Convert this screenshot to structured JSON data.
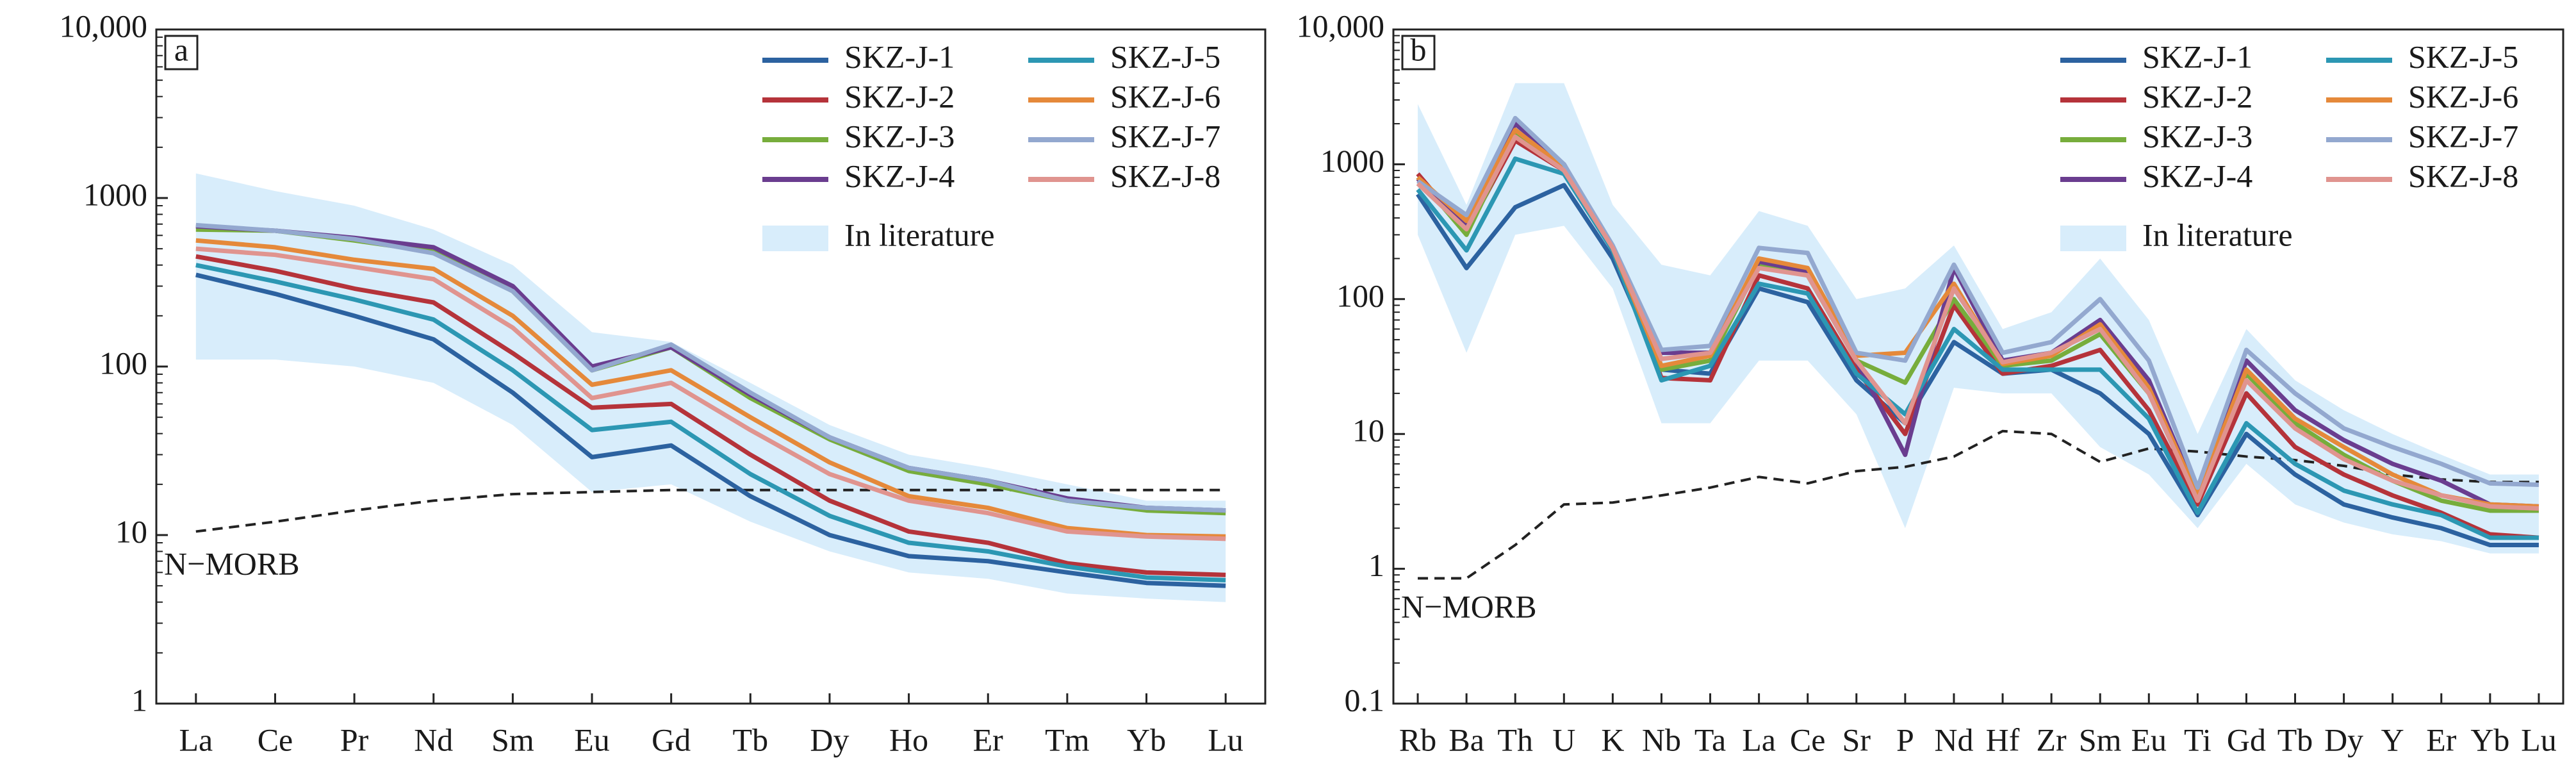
{
  "chart_data": [
    {
      "type": "line",
      "label": "a",
      "yscale": "log",
      "legend": "upper right",
      "categories": [
        "La",
        "Ce",
        "Pr",
        "Nd",
        "Sm",
        "Eu",
        "Gd",
        "Tb",
        "Dy",
        "Ho",
        "Er",
        "Tm",
        "Yb",
        "Lu"
      ],
      "ylim": [
        1,
        10000
      ],
      "yticks": [
        1,
        10,
        100,
        1000,
        {
          "value": 10000,
          "label": "10,000"
        }
      ],
      "series": [
        {
          "name": "SKZ-J-1",
          "color": "#2c62a0",
          "values": [
            350,
            270,
            200,
            145,
            70,
            29,
            34,
            17,
            10,
            7.5,
            7,
            6,
            5.2,
            5
          ]
        },
        {
          "name": "SKZ-J-2",
          "color": "#b5333a",
          "values": [
            450,
            370,
            290,
            240,
            120,
            57,
            60,
            30,
            16,
            10.5,
            9,
            6.8,
            6,
            5.8
          ]
        },
        {
          "name": "SKZ-J-3",
          "color": "#77ad3c",
          "values": [
            650,
            640,
            560,
            480,
            280,
            95,
            130,
            65,
            37,
            24,
            20,
            16,
            14,
            13.5
          ]
        },
        {
          "name": "SKZ-J-4",
          "color": "#6a3d8f",
          "values": [
            680,
            640,
            580,
            510,
            300,
            100,
            130,
            68,
            38,
            25,
            21,
            16.5,
            14.5,
            14
          ]
        },
        {
          "name": "SKZ-J-5",
          "color": "#2c97b3",
          "values": [
            400,
            320,
            250,
            190,
            95,
            42,
            47,
            23,
            13,
            9,
            8,
            6.5,
            5.6,
            5.4
          ]
        },
        {
          "name": "SKZ-J-6",
          "color": "#e5893a",
          "values": [
            560,
            510,
            430,
            380,
            200,
            78,
            95,
            50,
            27,
            17,
            14.5,
            11,
            10,
            9.8
          ]
        },
        {
          "name": "SKZ-J-7",
          "color": "#93a8cf",
          "values": [
            690,
            640,
            570,
            470,
            280,
            95,
            135,
            70,
            38,
            25,
            21,
            16,
            14.5,
            14
          ]
        },
        {
          "name": "SKZ-J-8",
          "color": "#e0948f",
          "values": [
            500,
            460,
            390,
            330,
            170,
            65,
            80,
            42,
            23,
            16,
            13.5,
            10.5,
            9.8,
            9.5
          ]
        }
      ],
      "band": {
        "name": "In literature",
        "color": "#d8edfb",
        "upper": [
          1400,
          1100,
          900,
          650,
          400,
          160,
          140,
          80,
          45,
          30,
          25,
          20,
          16,
          16
        ],
        "lower": [
          110,
          110,
          100,
          80,
          45,
          18,
          20,
          12,
          8,
          6,
          5.5,
          4.5,
          4.2,
          4
        ]
      },
      "reference": {
        "label": "N−MORB",
        "values": [
          10.5,
          12,
          14,
          16,
          17.5,
          18,
          18.5,
          18.5,
          18.5,
          18.5,
          18.5,
          18.5,
          18.5,
          18.5
        ]
      }
    },
    {
      "type": "line",
      "label": "b",
      "yscale": "log",
      "legend": "upper right",
      "categories": [
        "Rb",
        "Ba",
        "Th",
        "U",
        "K",
        "Nb",
        "Ta",
        "La",
        "Ce",
        "Sr",
        "P",
        "Nd",
        "Hf",
        "Zr",
        "Sm",
        "Eu",
        "Ti",
        "Gd",
        "Tb",
        "Dy",
        "Y",
        "Er",
        "Yb",
        "Lu"
      ],
      "ylim": [
        0.1,
        10000
      ],
      "yticks": [
        0.1,
        1,
        10,
        100,
        1000,
        {
          "value": 10000,
          "label": "10,000"
        }
      ],
      "series": [
        {
          "name": "SKZ-J-1",
          "color": "#2c62a0",
          "values": [
            600,
            170,
            480,
            700,
            200,
            30,
            28,
            120,
            95,
            25,
            12,
            48,
            28,
            30,
            20,
            10,
            2.5,
            10,
            5,
            3,
            2.4,
            2,
            1.5,
            1.5
          ]
        },
        {
          "name": "SKZ-J-2",
          "color": "#b5333a",
          "values": [
            850,
            320,
            1500,
            900,
            230,
            26,
            25,
            150,
            120,
            30,
            10,
            90,
            28,
            32,
            42,
            15,
            3,
            20,
            8,
            5,
            3.5,
            2.6,
            1.8,
            1.7
          ]
        },
        {
          "name": "SKZ-J-3",
          "color": "#77ad3c",
          "values": [
            800,
            300,
            1700,
            950,
            240,
            30,
            35,
            180,
            150,
            35,
            24,
            100,
            32,
            35,
            55,
            20,
            3.3,
            28,
            12,
            7,
            4.5,
            3.2,
            2.7,
            2.7
          ]
        },
        {
          "name": "SKZ-J-4",
          "color": "#6a3d8f",
          "values": [
            780,
            350,
            2000,
            1000,
            240,
            40,
            40,
            190,
            160,
            35,
            7,
            170,
            35,
            40,
            70,
            25,
            3.5,
            35,
            15,
            9,
            6,
            4.5,
            3,
            2.9
          ]
        },
        {
          "name": "SKZ-J-5",
          "color": "#2c97b3",
          "values": [
            650,
            230,
            1100,
            850,
            230,
            25,
            32,
            130,
            110,
            28,
            14,
            60,
            30,
            30,
            30,
            13,
            2.6,
            12,
            6,
            3.8,
            3,
            2.5,
            1.7,
            1.7
          ]
        },
        {
          "name": "SKZ-J-6",
          "color": "#e5893a",
          "values": [
            800,
            380,
            1800,
            950,
            240,
            32,
            38,
            200,
            170,
            38,
            40,
            130,
            33,
            38,
            65,
            22,
            3.5,
            30,
            13,
            8,
            5,
            3.5,
            3,
            2.9
          ]
        },
        {
          "name": "SKZ-J-7",
          "color": "#93a8cf",
          "values": [
            750,
            420,
            2200,
            1000,
            250,
            42,
            45,
            240,
            220,
            40,
            35,
            180,
            40,
            48,
            100,
            35,
            4,
            42,
            20,
            11,
            8,
            6,
            4.3,
            4.2
          ]
        },
        {
          "name": "SKZ-J-8",
          "color": "#e0948f",
          "values": [
            720,
            330,
            1600,
            900,
            240,
            36,
            40,
            170,
            150,
            35,
            12,
            120,
            34,
            40,
            60,
            20,
            3.2,
            25,
            11,
            6.5,
            4.5,
            3.5,
            2.9,
            2.8
          ]
        }
      ],
      "band": {
        "name": "In literature",
        "color": "#d8edfb",
        "upper": [
          2800,
          500,
          4000,
          4000,
          500,
          180,
          150,
          450,
          350,
          100,
          120,
          250,
          60,
          80,
          200,
          70,
          10,
          60,
          25,
          15,
          10,
          7,
          5,
          5
        ],
        "lower": [
          300,
          40,
          300,
          350,
          120,
          12,
          12,
          35,
          35,
          14,
          2,
          22,
          20,
          20,
          8,
          5,
          2,
          6,
          3,
          2.2,
          1.8,
          1.6,
          1.3,
          1.3
        ]
      },
      "reference": {
        "label": "N−MORB",
        "values": [
          0.85,
          0.85,
          1.5,
          3,
          3.1,
          3.5,
          4,
          4.8,
          4.3,
          5.3,
          5.7,
          6.8,
          10.5,
          10,
          6.2,
          7.8,
          7.4,
          6.8,
          6.4,
          5.8,
          5,
          4.6,
          4.4,
          4.4
        ]
      }
    }
  ]
}
